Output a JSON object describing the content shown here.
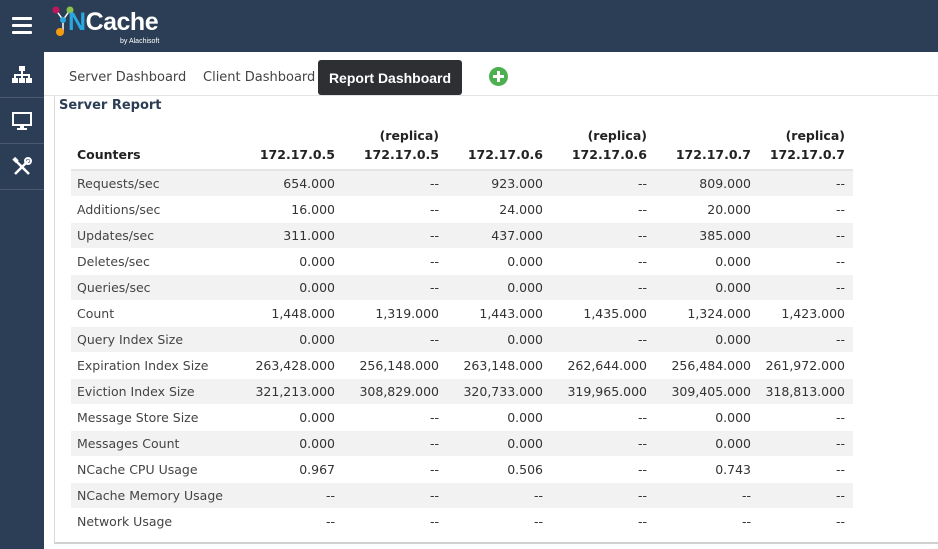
{
  "app": {
    "logo_text_n": "N",
    "logo_text_rest": "Cache",
    "logo_sub": "by Alachisoft"
  },
  "sidebar": {
    "items": [
      {
        "icon": "sitemap-icon"
      },
      {
        "icon": "monitor-icon"
      },
      {
        "icon": "tools-icon"
      }
    ]
  },
  "tabs": [
    {
      "label": "Server Dashboard",
      "active": false
    },
    {
      "label": "Client Dashboard",
      "active": false
    },
    {
      "label": "Report Dashboard",
      "active": true
    }
  ],
  "report": {
    "title": "Server Report",
    "columns": [
      {
        "top": "",
        "label": "Counters"
      },
      {
        "top": "",
        "label": "172.17.0.5"
      },
      {
        "top": "(replica)",
        "label": "172.17.0.5"
      },
      {
        "top": "",
        "label": "172.17.0.6"
      },
      {
        "top": "(replica)",
        "label": "172.17.0.6"
      },
      {
        "top": "",
        "label": "172.17.0.7"
      },
      {
        "top": "(replica)",
        "label": "172.17.0.7"
      }
    ],
    "rows": [
      [
        "Requests/sec",
        "654.000",
        "--",
        "923.000",
        "--",
        "809.000",
        "--"
      ],
      [
        "Additions/sec",
        "16.000",
        "--",
        "24.000",
        "--",
        "20.000",
        "--"
      ],
      [
        "Updates/sec",
        "311.000",
        "--",
        "437.000",
        "--",
        "385.000",
        "--"
      ],
      [
        "Deletes/sec",
        "0.000",
        "--",
        "0.000",
        "--",
        "0.000",
        "--"
      ],
      [
        "Queries/sec",
        "0.000",
        "--",
        "0.000",
        "--",
        "0.000",
        "--"
      ],
      [
        "Count",
        "1,448.000",
        "1,319.000",
        "1,443.000",
        "1,435.000",
        "1,324.000",
        "1,423.000"
      ],
      [
        "Query Index Size",
        "0.000",
        "--",
        "0.000",
        "--",
        "0.000",
        "--"
      ],
      [
        "Expiration Index Size",
        "263,428.000",
        "256,148.000",
        "263,148.000",
        "262,644.000",
        "256,484.000",
        "261,972.000"
      ],
      [
        "Eviction Index Size",
        "321,213.000",
        "308,829.000",
        "320,733.000",
        "319,965.000",
        "309,405.000",
        "318,813.000"
      ],
      [
        "Message Store Size",
        "0.000",
        "--",
        "0.000",
        "--",
        "0.000",
        "--"
      ],
      [
        "Messages Count",
        "0.000",
        "--",
        "0.000",
        "--",
        "0.000",
        "--"
      ],
      [
        "NCache CPU Usage",
        "0.967",
        "--",
        "0.506",
        "--",
        "0.743",
        "--"
      ],
      [
        "NCache Memory Usage",
        "--",
        "--",
        "--",
        "--",
        "--",
        "--"
      ],
      [
        "Network Usage",
        "--",
        "--",
        "--",
        "--",
        "--",
        "--"
      ]
    ]
  }
}
